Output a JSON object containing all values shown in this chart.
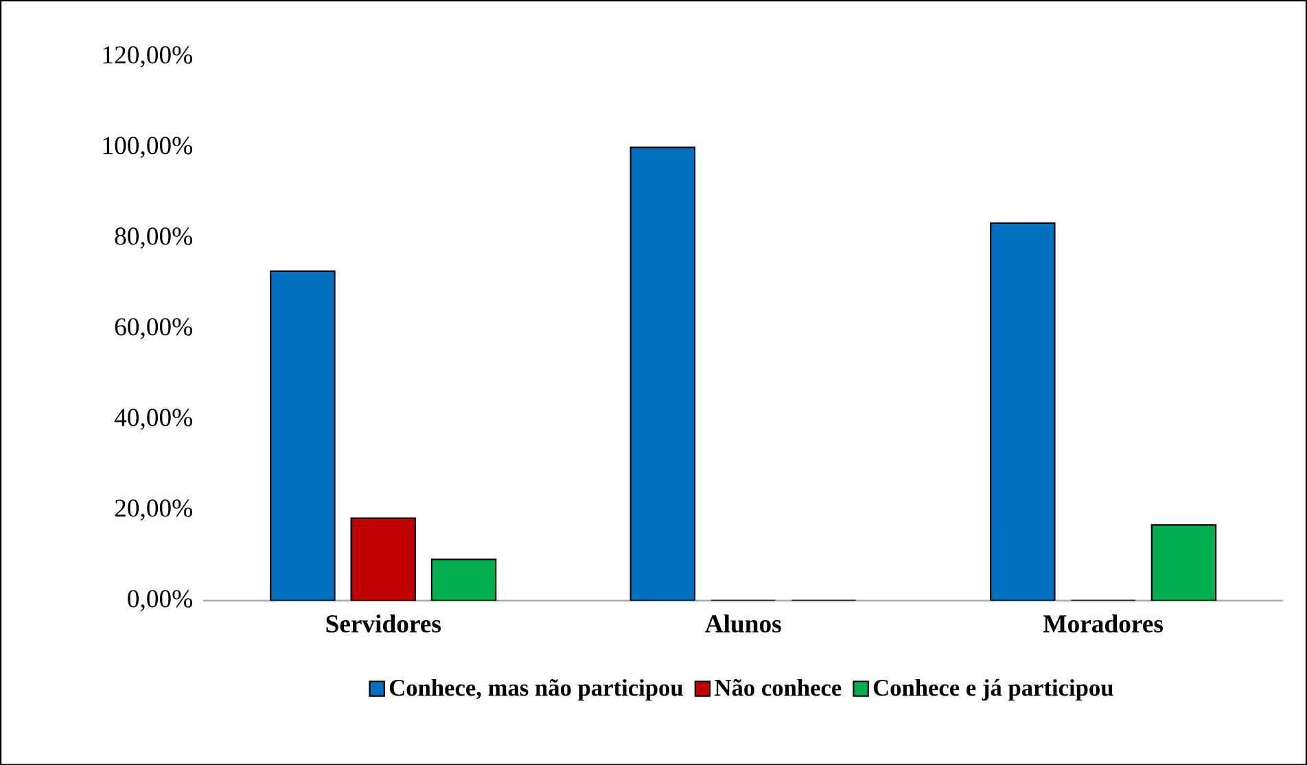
{
  "chart_data": {
    "type": "bar",
    "categories": [
      "Servidores",
      "Alunos",
      "Moradores"
    ],
    "series": [
      {
        "name": "Conhece, mas não participou",
        "color": "#0070c0",
        "values": [
          72.7,
          100,
          83.3
        ]
      },
      {
        "name": "Não conhece",
        "color": "#c00000",
        "values": [
          18.2,
          0,
          0
        ]
      },
      {
        "name": "Conhece e já participou",
        "color": "#00b050",
        "values": [
          9.1,
          0,
          16.7
        ]
      }
    ],
    "ylim": [
      0,
      120
    ],
    "yticks": [
      {
        "value": 0,
        "label": "0,00%"
      },
      {
        "value": 20,
        "label": "20,00%"
      },
      {
        "value": 40,
        "label": "40,00%"
      },
      {
        "value": 60,
        "label": "60,00%"
      },
      {
        "value": 80,
        "label": "80,00%"
      },
      {
        "value": 100,
        "label": "100,00%"
      },
      {
        "value": 120,
        "label": "120,00%"
      }
    ],
    "grid": false,
    "legend": "bottom"
  }
}
